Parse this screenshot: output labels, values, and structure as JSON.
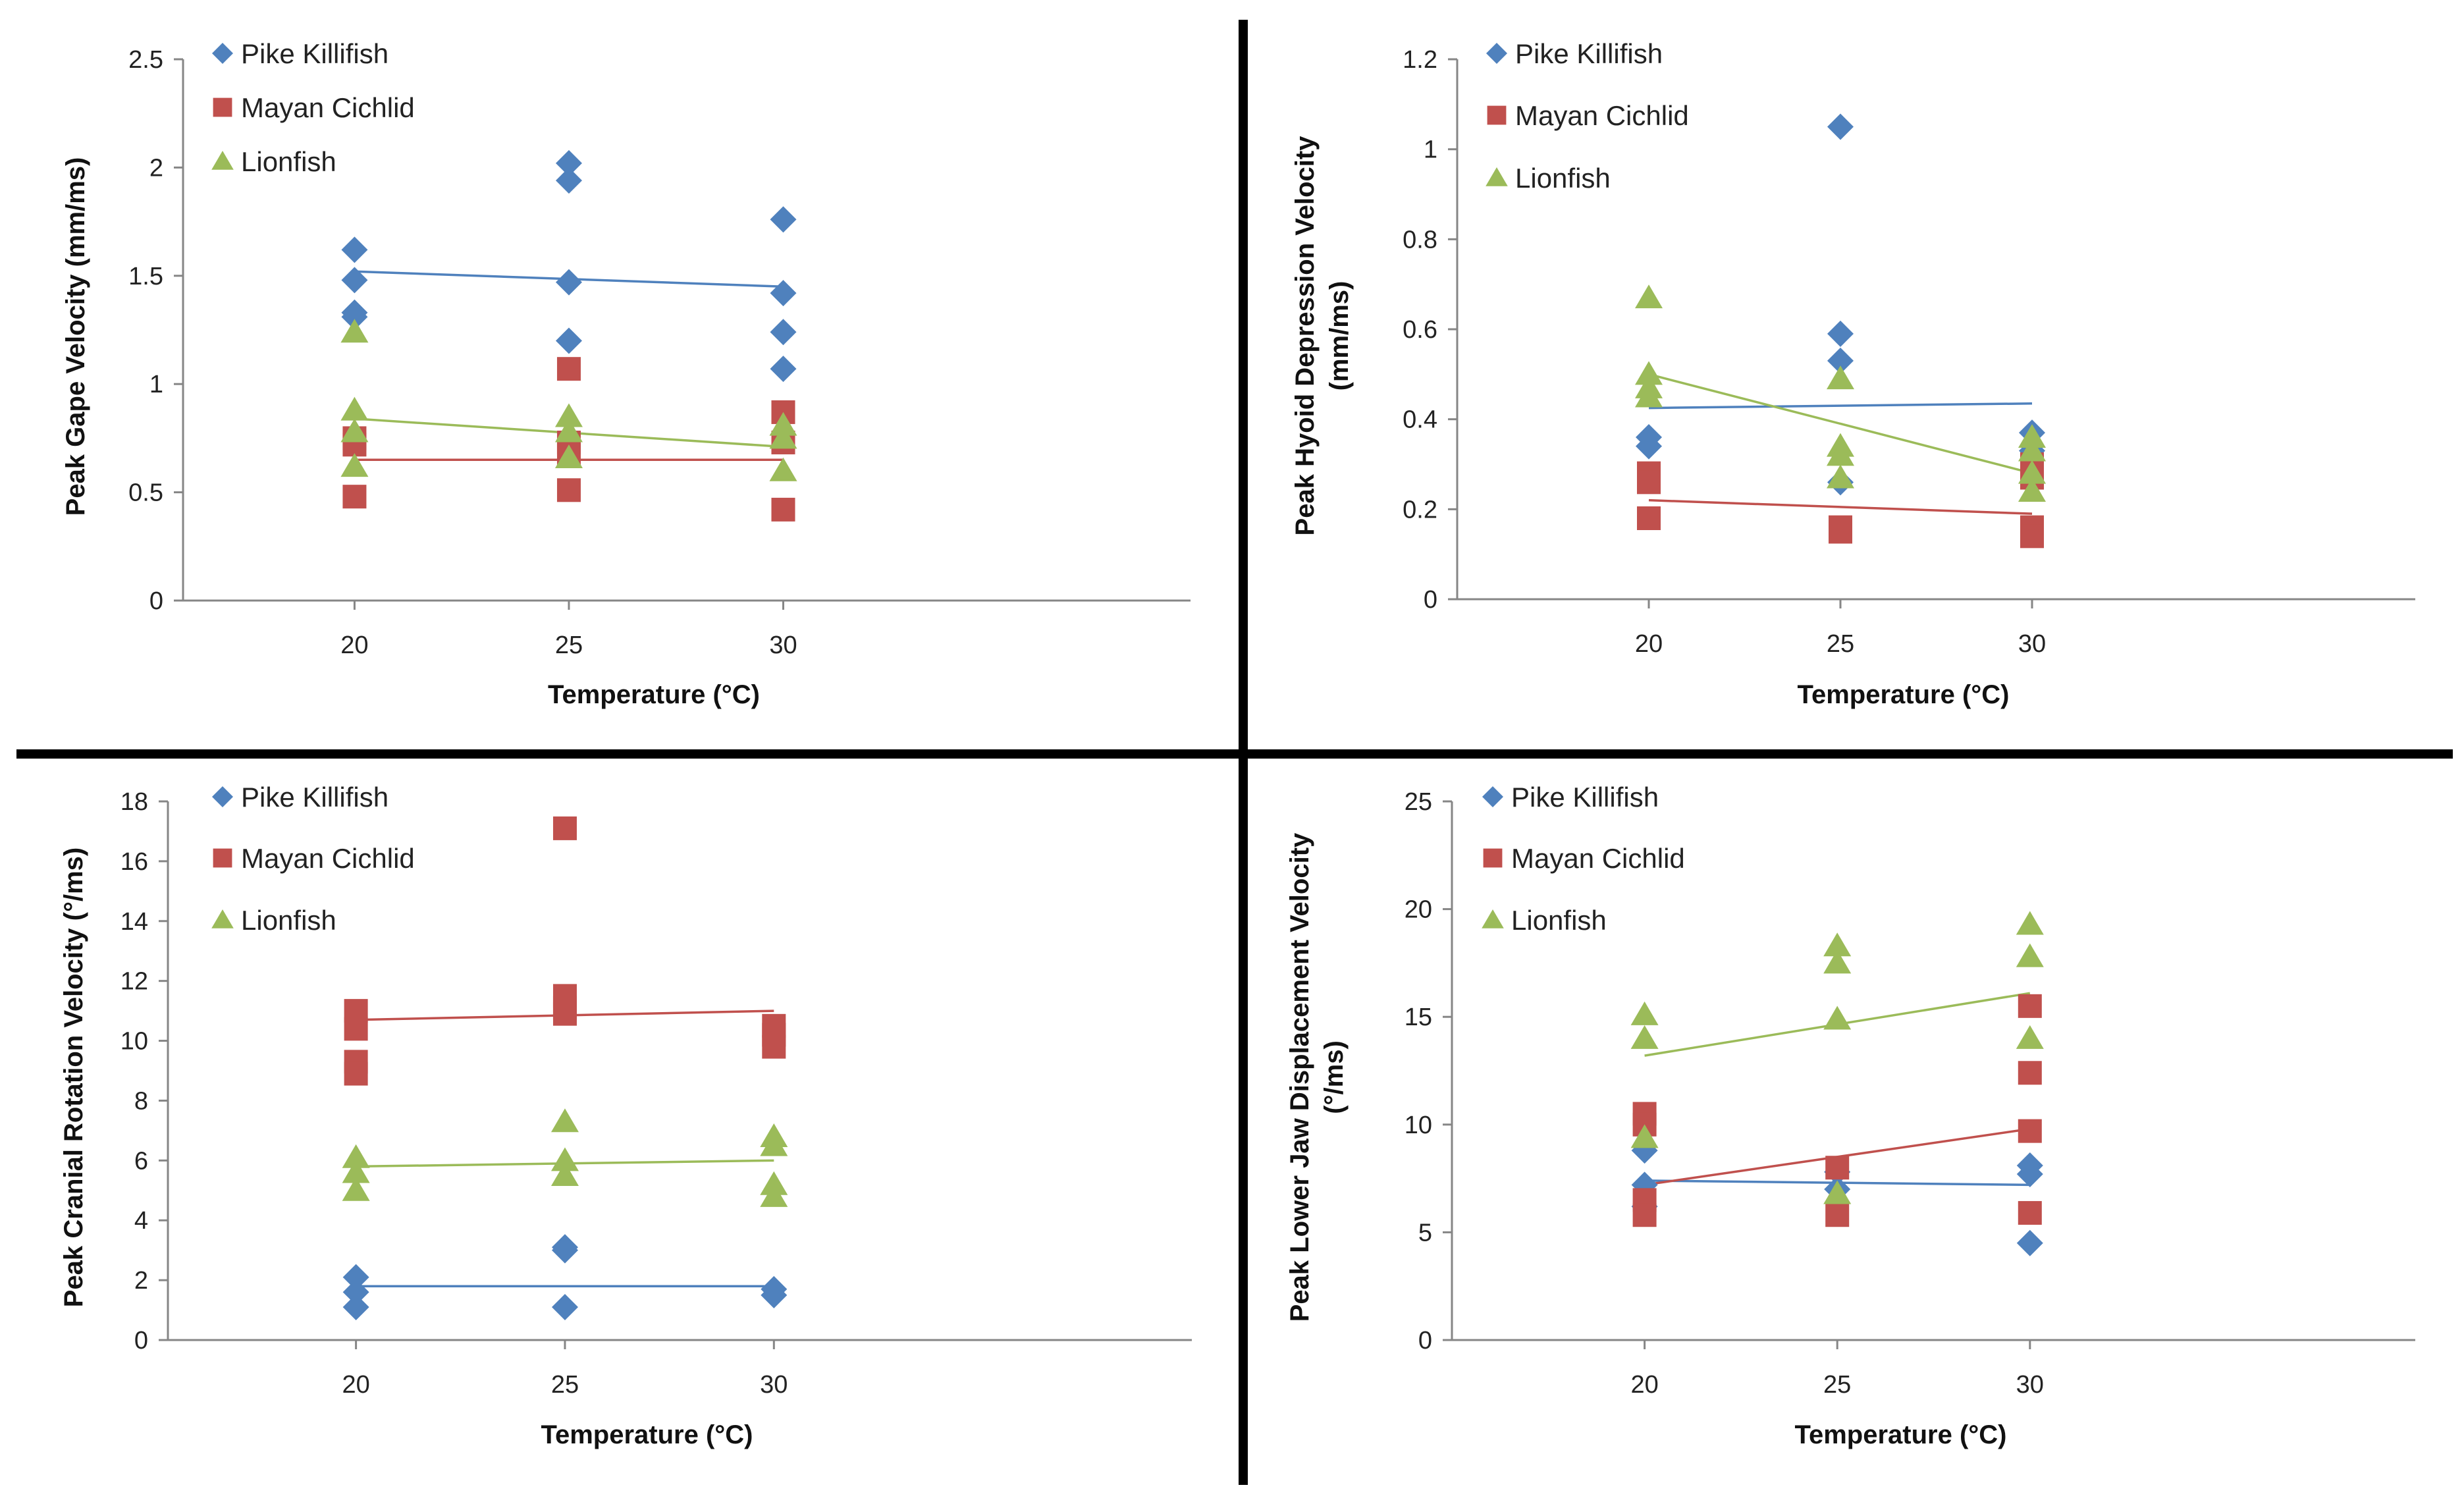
{
  "figure": {
    "chart_data": [
      {
        "type": "scatter",
        "title": "",
        "xlabel": "Temperature (°C)",
        "ylabel": "Peak Gape Velocity (mm/ms)",
        "xlim": [
          16,
          39.5
        ],
        "ylim": [
          0,
          2.5
        ],
        "yticks": [
          0,
          0.5,
          1,
          1.5,
          2,
          2.5
        ],
        "ytick_labels": [
          "0",
          "0.5",
          "1",
          "1.5",
          "2",
          "2.5"
        ],
        "xticks": [
          20,
          25,
          30
        ],
        "xtick_labels": [
          "20",
          "25",
          "30"
        ],
        "legend_position": "top-left",
        "series": [
          {
            "name": "Pike Killifish",
            "marker": "diamond",
            "color": "#4f81bd",
            "points": [
              [
                20,
                1.62
              ],
              [
                20,
                1.48
              ],
              [
                20,
                1.33
              ],
              [
                20,
                1.31
              ],
              [
                25,
                2.02
              ],
              [
                25,
                1.94
              ],
              [
                25,
                1.47
              ],
              [
                25,
                1.2
              ],
              [
                30,
                1.76
              ],
              [
                30,
                1.42
              ],
              [
                30,
                1.24
              ],
              [
                30,
                1.07
              ]
            ],
            "trend": [
              [
                20,
                1.52
              ],
              [
                30,
                1.45
              ]
            ]
          },
          {
            "name": "Mayan Cichlid",
            "marker": "square",
            "color": "#c0504d",
            "points": [
              [
                20,
                0.75
              ],
              [
                20,
                0.72
              ],
              [
                20,
                0.48
              ],
              [
                25,
                1.07
              ],
              [
                25,
                0.73
              ],
              [
                25,
                0.68
              ],
              [
                25,
                0.51
              ],
              [
                30,
                0.87
              ],
              [
                30,
                0.73
              ],
              [
                30,
                0.42
              ]
            ],
            "trend": [
              [
                20,
                0.65
              ],
              [
                30,
                0.65
              ]
            ]
          },
          {
            "name": "Lionfish",
            "marker": "triangle",
            "color": "#9bbb59",
            "points": [
              [
                20,
                1.24
              ],
              [
                20,
                0.88
              ],
              [
                20,
                0.78
              ],
              [
                20,
                0.62
              ],
              [
                25,
                0.85
              ],
              [
                25,
                0.78
              ],
              [
                25,
                0.66
              ],
              [
                30,
                0.81
              ],
              [
                30,
                0.75
              ],
              [
                30,
                0.6
              ]
            ],
            "trend": [
              [
                20,
                0.84
              ],
              [
                30,
                0.71
              ]
            ]
          }
        ]
      },
      {
        "type": "scatter",
        "title": "",
        "xlabel": "Temperature (°C)",
        "ylabel": "Peak Hyoid Depression Velocity (mm/ms)",
        "ylabel_lines": [
          "Peak Hyoid Depression Velocity",
          "(mm/ms)"
        ],
        "xlim": [
          15,
          40
        ],
        "ylim": [
          0,
          1.2
        ],
        "yticks": [
          0,
          0.2,
          0.4,
          0.6,
          0.8,
          1,
          1.2
        ],
        "ytick_labels": [
          "0",
          "0.2",
          "0.4",
          "0.6",
          "0.8",
          "1",
          "1.2"
        ],
        "xticks": [
          20,
          25,
          30
        ],
        "xtick_labels": [
          "20",
          "25",
          "30"
        ],
        "legend_position": "top-left",
        "series": [
          {
            "name": "Pike Killifish",
            "marker": "diamond",
            "color": "#4f81bd",
            "points": [
              [
                20,
                0.36
              ],
              [
                20,
                0.34
              ],
              [
                25,
                1.05
              ],
              [
                25,
                0.59
              ],
              [
                25,
                0.53
              ],
              [
                25,
                0.26
              ],
              [
                30,
                0.37
              ],
              [
                30,
                0.33
              ]
            ],
            "trend": [
              [
                20,
                0.425
              ],
              [
                30,
                0.435
              ]
            ]
          },
          {
            "name": "Mayan Cichlid",
            "marker": "square",
            "color": "#c0504d",
            "points": [
              [
                20,
                0.28
              ],
              [
                20,
                0.26
              ],
              [
                20,
                0.18
              ],
              [
                25,
                0.16
              ],
              [
                25,
                0.15
              ],
              [
                30,
                0.3
              ],
              [
                30,
                0.27
              ],
              [
                30,
                0.16
              ],
              [
                30,
                0.14
              ]
            ],
            "trend": [
              [
                20,
                0.22
              ],
              [
                30,
                0.19
              ]
            ]
          },
          {
            "name": "Lionfish",
            "marker": "triangle",
            "color": "#9bbb59",
            "points": [
              [
                20,
                0.67
              ],
              [
                20,
                0.5
              ],
              [
                20,
                0.47
              ],
              [
                20,
                0.45
              ],
              [
                25,
                0.49
              ],
              [
                25,
                0.34
              ],
              [
                25,
                0.32
              ],
              [
                25,
                0.27
              ],
              [
                30,
                0.36
              ],
              [
                30,
                0.33
              ],
              [
                30,
                0.28
              ],
              [
                30,
                0.24
              ]
            ],
            "trend": [
              [
                20,
                0.5
              ],
              [
                30,
                0.28
              ]
            ]
          }
        ]
      },
      {
        "type": "scatter",
        "title": "",
        "xlabel": "Temperature (°C)",
        "ylabel": "Peak Cranial Rotation Velocity (°/ms)",
        "xlim": [
          15.5,
          40
        ],
        "ylim": [
          0,
          18
        ],
        "yticks": [
          0,
          2,
          4,
          6,
          8,
          10,
          12,
          14,
          16,
          18
        ],
        "ytick_labels": [
          "0",
          "2",
          "4",
          "6",
          "8",
          "10",
          "12",
          "14",
          "16",
          "18"
        ],
        "xticks": [
          20,
          25,
          30
        ],
        "xtick_labels": [
          "20",
          "25",
          "30"
        ],
        "legend_position": "top-left",
        "series": [
          {
            "name": "Pike Killifish",
            "marker": "diamond",
            "color": "#4f81bd",
            "points": [
              [
                20,
                2.1
              ],
              [
                20,
                1.6
              ],
              [
                20,
                1.1
              ],
              [
                25,
                3.1
              ],
              [
                25,
                3.0
              ],
              [
                25,
                1.1
              ],
              [
                30,
                1.7
              ],
              [
                30,
                1.5
              ]
            ],
            "trend": [
              [
                20,
                1.8
              ],
              [
                30,
                1.8
              ]
            ]
          },
          {
            "name": "Mayan Cichlid",
            "marker": "square",
            "color": "#c0504d",
            "points": [
              [
                20,
                11.0
              ],
              [
                20,
                10.4
              ],
              [
                20,
                9.3
              ],
              [
                20,
                8.9
              ],
              [
                25,
                17.1
              ],
              [
                25,
                11.5
              ],
              [
                25,
                11.1
              ],
              [
                25,
                10.9
              ],
              [
                30,
                10.5
              ],
              [
                30,
                10.2
              ],
              [
                30,
                9.8
              ]
            ],
            "trend": [
              [
                20,
                10.7
              ],
              [
                30,
                11.0
              ]
            ]
          },
          {
            "name": "Lionfish",
            "marker": "triangle",
            "color": "#9bbb59",
            "points": [
              [
                20,
                6.1
              ],
              [
                20,
                5.6
              ],
              [
                20,
                5.0
              ],
              [
                25,
                7.3
              ],
              [
                25,
                6.0
              ],
              [
                25,
                5.5
              ],
              [
                30,
                6.8
              ],
              [
                30,
                6.5
              ],
              [
                30,
                5.2
              ],
              [
                30,
                4.8
              ]
            ],
            "trend": [
              [
                20,
                5.8
              ],
              [
                30,
                6.0
              ]
            ]
          }
        ]
      },
      {
        "type": "scatter",
        "title": "",
        "xlabel": "Temperature (°C)",
        "ylabel": "Peak Lower Jaw Displacement Velocity (°/ms)",
        "ylabel_lines": [
          "Peak Lower Jaw Displacement Velocity",
          "(°/ms)"
        ],
        "xlim": [
          15,
          40
        ],
        "ylim": [
          0,
          25
        ],
        "yticks": [
          0,
          5,
          10,
          15,
          20,
          25
        ],
        "ytick_labels": [
          "0",
          "5",
          "10",
          "15",
          "20",
          "25"
        ],
        "xticks": [
          20,
          25,
          30
        ],
        "xtick_labels": [
          "20",
          "25",
          "30"
        ],
        "legend_position": "top-left",
        "series": [
          {
            "name": "Pike Killifish",
            "marker": "diamond",
            "color": "#4f81bd",
            "points": [
              [
                20,
                8.8
              ],
              [
                20,
                7.2
              ],
              [
                20,
                6.2
              ],
              [
                25,
                7.8
              ],
              [
                25,
                7.0
              ],
              [
                30,
                8.1
              ],
              [
                30,
                7.7
              ],
              [
                30,
                4.5
              ]
            ],
            "trend": [
              [
                20,
                7.4
              ],
              [
                30,
                7.2
              ]
            ]
          },
          {
            "name": "Mayan Cichlid",
            "marker": "square",
            "color": "#c0504d",
            "points": [
              [
                20,
                10.5
              ],
              [
                20,
                10.0
              ],
              [
                20,
                6.5
              ],
              [
                20,
                5.8
              ],
              [
                25,
                8.0
              ],
              [
                25,
                5.8
              ],
              [
                30,
                15.5
              ],
              [
                30,
                12.4
              ],
              [
                30,
                9.7
              ],
              [
                30,
                5.9
              ]
            ],
            "trend": [
              [
                20,
                7.2
              ],
              [
                30,
                9.8
              ]
            ]
          },
          {
            "name": "Lionfish",
            "marker": "triangle",
            "color": "#9bbb59",
            "points": [
              [
                20,
                15.1
              ],
              [
                20,
                14.0
              ],
              [
                20,
                9.4
              ],
              [
                25,
                18.3
              ],
              [
                25,
                17.5
              ],
              [
                25,
                14.9
              ],
              [
                25,
                6.8
              ],
              [
                30,
                19.3
              ],
              [
                30,
                17.8
              ],
              [
                30,
                14.0
              ]
            ],
            "trend": [
              [
                20,
                13.2
              ],
              [
                30,
                16.1
              ]
            ]
          }
        ]
      }
    ]
  }
}
